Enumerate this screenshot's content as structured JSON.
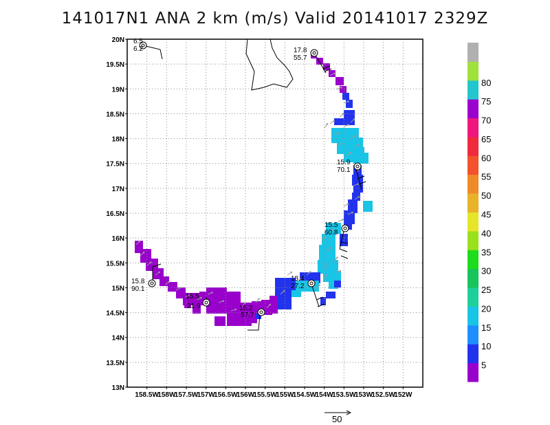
{
  "title": "141017N1 ANA 2 km (m/s) Valid 20141017 2329Z",
  "lat_labels": [
    "20N",
    "19.5N",
    "19N",
    "18.5N",
    "18N",
    "17.5N",
    "17N",
    "16.5N",
    "16N",
    "15.5N",
    "15N",
    "14.5N",
    "14N",
    "13.5N",
    "13N"
  ],
  "lon_labels": [
    "158.5W",
    "158W",
    "157.5W",
    "157W",
    "156.5W",
    "156W",
    "155.5W",
    "155W",
    "154.5W",
    "154W",
    "153.5W",
    "153W",
    "152.5W",
    "152W"
  ],
  "colorbar": {
    "labels": [
      "5",
      "10",
      "15",
      "20",
      "25",
      "30",
      "35",
      "40",
      "45",
      "50",
      "55",
      "60",
      "65",
      "70",
      "75",
      "80"
    ],
    "colors": [
      "#9900cc",
      "#2233ee",
      "#1f8fff",
      "#19c5e6",
      "#1fcf9a",
      "#18c45c",
      "#1ddc1d",
      "#9be01d",
      "#e5e52a",
      "#e8b22a",
      "#f08a28",
      "#f2532d",
      "#ef2a3c",
      "#f0167e",
      "#9b00cf",
      "#22c6cc",
      "#9ee23b",
      "#b0b0b0"
    ]
  },
  "storm_markers": [
    {
      "speed": "6.5",
      "dir": "6.2"
    },
    {
      "speed": "17.8",
      "dir": "55.7"
    },
    {
      "speed": "15.9",
      "dir": "70.1"
    },
    {
      "speed": "15.5",
      "dir": "60.8"
    },
    {
      "speed": "18.4",
      "dir": "27.2"
    },
    {
      "speed": "15.2",
      "dir": "57.7"
    },
    {
      "speed": "15.5",
      "dir": "21.9"
    },
    {
      "speed": "15.8",
      "dir": "90.1"
    }
  ],
  "reference_vector_label": "50",
  "colors": {
    "purple": "#9900cc",
    "blue": "#2233ee",
    "medblue": "#1f8fff",
    "cyan": "#19c5e6",
    "grid": "#888888",
    "arrow": "#9a9a9a"
  }
}
